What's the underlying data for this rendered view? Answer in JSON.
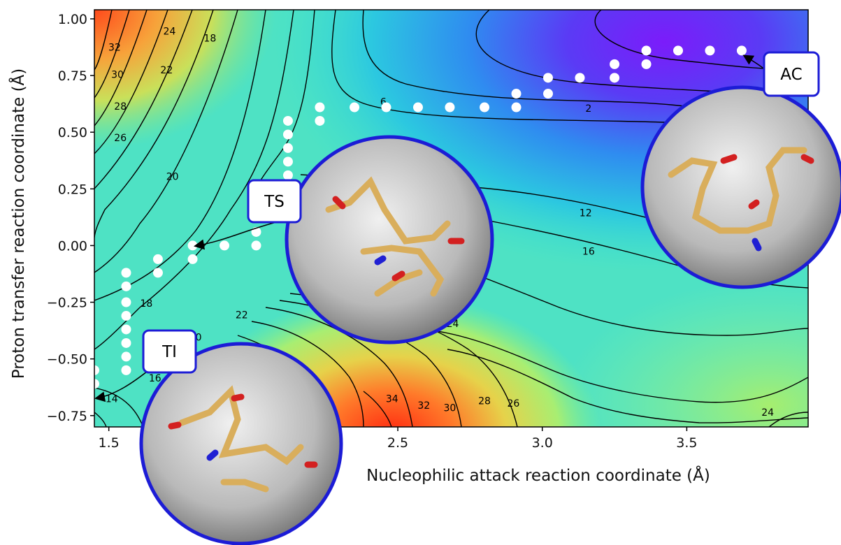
{
  "chart_data": {
    "type": "heatmap",
    "title": "",
    "xlabel": "Nucleophilic attack reaction coordinate (Å)",
    "ylabel": "Proton transfer reaction coordinate (Å)",
    "xlim": [
      1.45,
      3.92
    ],
    "ylim": [
      -0.8,
      1.04
    ],
    "x_ticks": [
      "1.5",
      "2.5",
      "3.0",
      "3.5"
    ],
    "x_tick_values": [
      1.5,
      2.5,
      3.0,
      3.5
    ],
    "y_ticks": [
      "1.00",
      "0.75",
      "0.50",
      "0.25",
      "0.00",
      "−0.25",
      "−0.50",
      "−0.75"
    ],
    "y_tick_values": [
      1.0,
      0.75,
      0.5,
      0.25,
      0.0,
      -0.25,
      -0.5,
      -0.75
    ],
    "colormap": "rainbow",
    "contour_labels": [
      {
        "text": "32",
        "x": 1.52,
        "y": 0.86
      },
      {
        "text": "30",
        "x": 1.53,
        "y": 0.74
      },
      {
        "text": "28",
        "x": 1.54,
        "y": 0.6
      },
      {
        "text": "26",
        "x": 1.54,
        "y": 0.46
      },
      {
        "text": "24",
        "x": 1.71,
        "y": 0.93
      },
      {
        "text": "22",
        "x": 1.7,
        "y": 0.76
      },
      {
        "text": "18",
        "x": 1.85,
        "y": 0.9
      },
      {
        "text": "20",
        "x": 1.72,
        "y": 0.29
      },
      {
        "text": "6",
        "x": 2.45,
        "y": 0.62
      },
      {
        "text": "2",
        "x": 3.16,
        "y": 0.59
      },
      {
        "text": "12",
        "x": 3.15,
        "y": 0.13
      },
      {
        "text": "16",
        "x": 3.16,
        "y": -0.04
      },
      {
        "text": "18",
        "x": 1.63,
        "y": -0.27
      },
      {
        "text": "22",
        "x": 1.96,
        "y": -0.32
      },
      {
        "text": "20",
        "x": 1.8,
        "y": -0.42
      },
      {
        "text": "16",
        "x": 1.66,
        "y": -0.6
      },
      {
        "text": "14",
        "x": 1.51,
        "y": -0.69
      },
      {
        "text": "24",
        "x": 2.69,
        "y": -0.36
      },
      {
        "text": "34",
        "x": 2.48,
        "y": -0.69
      },
      {
        "text": "32",
        "x": 2.59,
        "y": -0.72
      },
      {
        "text": "30",
        "x": 2.68,
        "y": -0.73
      },
      {
        "text": "28",
        "x": 2.8,
        "y": -0.7
      },
      {
        "text": "26",
        "x": 2.9,
        "y": -0.71
      },
      {
        "text": "24",
        "x": 3.78,
        "y": -0.75
      }
    ],
    "path_points": [
      {
        "x": 1.45,
        "y": -0.61
      },
      {
        "x": 1.45,
        "y": -0.55
      },
      {
        "x": 1.56,
        "y": -0.55
      },
      {
        "x": 1.56,
        "y": -0.49
      },
      {
        "x": 1.56,
        "y": -0.43
      },
      {
        "x": 1.56,
        "y": -0.37
      },
      {
        "x": 1.56,
        "y": -0.31
      },
      {
        "x": 1.56,
        "y": -0.25
      },
      {
        "x": 1.56,
        "y": -0.18
      },
      {
        "x": 1.56,
        "y": -0.12
      },
      {
        "x": 1.67,
        "y": -0.12
      },
      {
        "x": 1.67,
        "y": -0.06
      },
      {
        "x": 1.79,
        "y": -0.06
      },
      {
        "x": 1.79,
        "y": 0.0
      },
      {
        "x": 1.9,
        "y": 0.0
      },
      {
        "x": 2.01,
        "y": 0.0
      },
      {
        "x": 2.01,
        "y": 0.06
      },
      {
        "x": 2.12,
        "y": 0.12
      },
      {
        "x": 2.12,
        "y": 0.18
      },
      {
        "x": 2.12,
        "y": 0.25
      },
      {
        "x": 2.12,
        "y": 0.31
      },
      {
        "x": 2.12,
        "y": 0.37
      },
      {
        "x": 2.12,
        "y": 0.43
      },
      {
        "x": 2.12,
        "y": 0.49
      },
      {
        "x": 2.12,
        "y": 0.55
      },
      {
        "x": 2.23,
        "y": 0.55
      },
      {
        "x": 2.23,
        "y": 0.61
      },
      {
        "x": 2.35,
        "y": 0.61
      },
      {
        "x": 2.46,
        "y": 0.61
      },
      {
        "x": 2.57,
        "y": 0.61
      },
      {
        "x": 2.68,
        "y": 0.61
      },
      {
        "x": 2.8,
        "y": 0.61
      },
      {
        "x": 2.91,
        "y": 0.61
      },
      {
        "x": 2.91,
        "y": 0.67
      },
      {
        "x": 3.02,
        "y": 0.67
      },
      {
        "x": 3.02,
        "y": 0.74
      },
      {
        "x": 3.13,
        "y": 0.74
      },
      {
        "x": 3.25,
        "y": 0.74
      },
      {
        "x": 3.25,
        "y": 0.8
      },
      {
        "x": 3.36,
        "y": 0.8
      },
      {
        "x": 3.36,
        "y": 0.86
      },
      {
        "x": 3.47,
        "y": 0.86
      },
      {
        "x": 3.58,
        "y": 0.86
      },
      {
        "x": 3.69,
        "y": 0.86
      }
    ],
    "states": [
      {
        "label": "TS",
        "point": {
          "x": 1.9,
          "y": 0.0
        }
      },
      {
        "label": "TI",
        "point": {
          "x": 1.45,
          "y": -0.66
        }
      },
      {
        "label": "AC",
        "point": {
          "x": 3.69,
          "y": 0.86
        }
      }
    ]
  },
  "colors": {
    "path_dot": "#ffffff",
    "inset_border": "#1c1cd6",
    "label_box_border": "#1c1cd6",
    "contour_line": "#000000"
  },
  "insets": [
    {
      "name": "ts-structure",
      "subject": "transition state molecular structure in protein pocket"
    },
    {
      "name": "ti-structure",
      "subject": "tetrahedral intermediate molecular structure in protein pocket"
    },
    {
      "name": "ac-structure",
      "subject": "acyl complex molecular structure in protein pocket"
    }
  ]
}
